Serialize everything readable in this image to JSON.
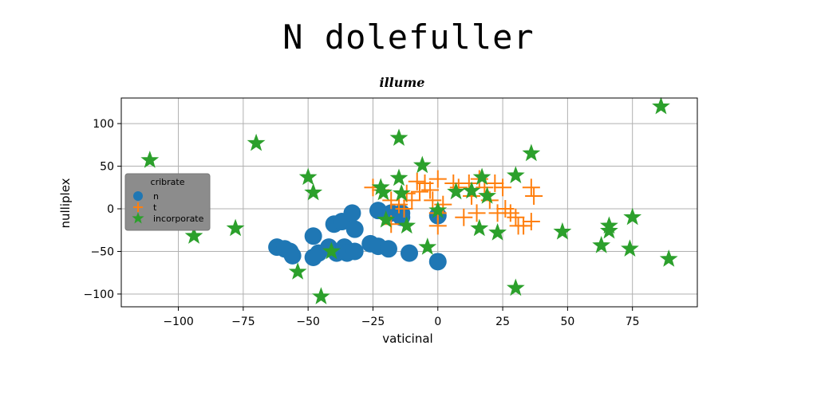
{
  "title": "N dolefuller",
  "chart_data": {
    "type": "scatter",
    "subtitle": "illume",
    "xlabel": "vaticinal",
    "ylabel": "nulliplex",
    "xlim": [
      -122,
      100
    ],
    "ylim": [
      -115,
      130
    ],
    "xticks": [
      -100,
      -75,
      -50,
      -25,
      0,
      25,
      50,
      75
    ],
    "yticks": [
      -100,
      -50,
      0,
      50,
      100
    ],
    "xtick_labels": [
      "−100",
      "−75",
      "−50",
      "−25",
      "0",
      "25",
      "50",
      "75"
    ],
    "ytick_labels": [
      "−100",
      "−50",
      "0",
      "50",
      "100"
    ],
    "grid": true,
    "legend": {
      "title": "cribrate",
      "position": "center-left"
    },
    "series": [
      {
        "name": "n",
        "marker": "circle",
        "color": "#1f77b4",
        "points": [
          [
            -62,
            -45
          ],
          [
            -59,
            -47
          ],
          [
            -57,
            -50
          ],
          [
            -56,
            -55
          ],
          [
            -48,
            -32
          ],
          [
            -48,
            -57
          ],
          [
            -46,
            -52
          ],
          [
            -42,
            -45
          ],
          [
            -40,
            -18
          ],
          [
            -39,
            -52
          ],
          [
            -37,
            -15
          ],
          [
            -36,
            -45
          ],
          [
            -35,
            -52
          ],
          [
            -33,
            -5
          ],
          [
            -32,
            -24
          ],
          [
            -32,
            -50
          ],
          [
            -26,
            -41
          ],
          [
            -23,
            -2
          ],
          [
            -23,
            -44
          ],
          [
            -19,
            -47
          ],
          [
            -18,
            -5
          ],
          [
            -14,
            -5
          ],
          [
            -14,
            -10
          ],
          [
            -11,
            -52
          ],
          [
            0,
            -8
          ],
          [
            0,
            -62
          ]
        ]
      },
      {
        "name": "t",
        "marker": "plus",
        "color": "#ff7f0e",
        "points": [
          [
            -25,
            25
          ],
          [
            -22,
            22
          ],
          [
            -18,
            10
          ],
          [
            -18,
            -18
          ],
          [
            -15,
            5
          ],
          [
            -13,
            0
          ],
          [
            -12,
            18
          ],
          [
            -10,
            10
          ],
          [
            -8,
            32
          ],
          [
            -7,
            20
          ],
          [
            -5,
            30
          ],
          [
            -3,
            22
          ],
          [
            -2,
            10
          ],
          [
            0,
            -5
          ],
          [
            0,
            -20
          ],
          [
            0,
            35
          ],
          [
            2,
            5
          ],
          [
            6,
            30
          ],
          [
            8,
            25
          ],
          [
            10,
            -10
          ],
          [
            12,
            30
          ],
          [
            13,
            15
          ],
          [
            15,
            -5
          ],
          [
            16,
            35
          ],
          [
            18,
            25
          ],
          [
            20,
            10
          ],
          [
            22,
            30
          ],
          [
            23,
            -5
          ],
          [
            25,
            25
          ],
          [
            26,
            0
          ],
          [
            28,
            -5
          ],
          [
            30,
            -10
          ],
          [
            31,
            -20
          ],
          [
            33,
            -20
          ],
          [
            36,
            25
          ],
          [
            36,
            -15
          ],
          [
            37,
            15
          ]
        ]
      },
      {
        "name": "incorporate",
        "marker": "star",
        "color": "#2ca02c",
        "points": [
          [
            -111,
            57
          ],
          [
            -94,
            -32
          ],
          [
            -78,
            -23
          ],
          [
            -70,
            77
          ],
          [
            -54,
            -74
          ],
          [
            -50,
            37
          ],
          [
            -48,
            19
          ],
          [
            -45,
            -103
          ],
          [
            -41,
            -50
          ],
          [
            -22,
            25
          ],
          [
            -21,
            19
          ],
          [
            -20,
            -13
          ],
          [
            -15,
            83
          ],
          [
            -15,
            36
          ],
          [
            -14,
            18
          ],
          [
            -12,
            -20
          ],
          [
            -6,
            51
          ],
          [
            -4,
            -45
          ],
          [
            0,
            -2
          ],
          [
            7,
            20
          ],
          [
            13,
            21
          ],
          [
            16,
            -23
          ],
          [
            17,
            37
          ],
          [
            19,
            15
          ],
          [
            23,
            -28
          ],
          [
            30,
            39
          ],
          [
            30,
            -93
          ],
          [
            36,
            65
          ],
          [
            48,
            -27
          ],
          [
            63,
            -43
          ],
          [
            66,
            -20
          ],
          [
            66,
            -26
          ],
          [
            74,
            -47
          ],
          [
            75,
            -10
          ],
          [
            86,
            120
          ],
          [
            89,
            -59
          ]
        ]
      }
    ]
  }
}
